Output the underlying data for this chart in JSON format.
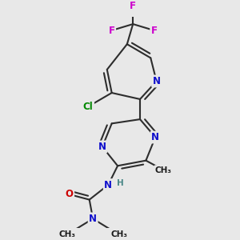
{
  "bg_color": "#e8e8e8",
  "bond_color": "#2d2d2d",
  "bond_width": 1.5,
  "N_color": "#1010cc",
  "F_color": "#cc00cc",
  "Cl_color": "#008800",
  "O_color": "#cc0000",
  "C_color": "#1a1a1a",
  "H_color": "#4a8888",
  "figsize": [
    3.0,
    3.0
  ],
  "dpi": 100,
  "xlim": [
    0,
    10
  ],
  "ylim": [
    0,
    10
  ]
}
